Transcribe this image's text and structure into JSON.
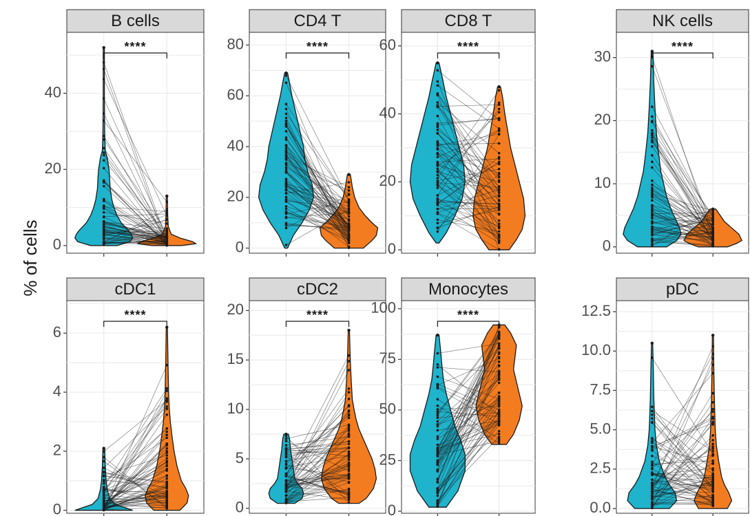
{
  "figure": {
    "ylabel": "% of cells"
  },
  "colors": {
    "group1": "#1fb3cc",
    "group2": "#f47c20",
    "pair_line": "#1a1a1a",
    "strip_bg": "#d9d9d9",
    "grid": "#ebebeb"
  },
  "chart_data": [
    {
      "type": "violin",
      "title": "B cells",
      "significance": "****",
      "ylim": [
        -2,
        56
      ],
      "ticks": [
        0,
        20,
        40
      ],
      "tick_labels": [
        "0",
        "20",
        "40"
      ],
      "groups": [
        {
          "max": 52,
          "shape": [
            [
              0,
              0.45
            ],
            [
              1,
              0.9
            ],
            [
              2,
              1.0
            ],
            [
              3,
              0.95
            ],
            [
              4,
              0.85
            ],
            [
              6,
              0.6
            ],
            [
              8,
              0.45
            ],
            [
              10,
              0.35
            ],
            [
              12,
              0.28
            ],
            [
              15,
              0.22
            ],
            [
              18,
              0.2
            ],
            [
              20,
              0.18
            ],
            [
              23,
              0.12
            ],
            [
              25,
              0.05
            ],
            [
              30,
              0.03
            ],
            [
              40,
              0.02
            ],
            [
              52,
              0.02
            ]
          ]
        },
        {
          "max": 13,
          "shape": [
            [
              0,
              0.5
            ],
            [
              0.5,
              1.0
            ],
            [
              1,
              0.9
            ],
            [
              2,
              0.45
            ],
            [
              3,
              0.15
            ],
            [
              5,
              0.05
            ],
            [
              8,
              0.03
            ],
            [
              13,
              0.02
            ]
          ]
        }
      ]
    },
    {
      "type": "violin",
      "title": "CD4 T",
      "significance": "****",
      "ylim": [
        -2,
        85
      ],
      "ticks": [
        0,
        20,
        40,
        60,
        80
      ],
      "tick_labels": [
        "0",
        "20",
        "40",
        "60",
        "80"
      ],
      "groups": [
        {
          "max": 69,
          "shape": [
            [
              0,
              0.05
            ],
            [
              5,
              0.25
            ],
            [
              10,
              0.55
            ],
            [
              15,
              0.8
            ],
            [
              20,
              0.95
            ],
            [
              25,
              0.9
            ],
            [
              30,
              0.75
            ],
            [
              35,
              0.65
            ],
            [
              40,
              0.6
            ],
            [
              45,
              0.5
            ],
            [
              50,
              0.4
            ],
            [
              55,
              0.3
            ],
            [
              60,
              0.2
            ],
            [
              65,
              0.12
            ],
            [
              69,
              0.05
            ]
          ]
        },
        {
          "max": 29,
          "shape": [
            [
              0,
              0.5
            ],
            [
              3,
              0.8
            ],
            [
              5,
              0.95
            ],
            [
              8,
              1.0
            ],
            [
              10,
              0.8
            ],
            [
              13,
              0.55
            ],
            [
              16,
              0.35
            ],
            [
              20,
              0.2
            ],
            [
              24,
              0.12
            ],
            [
              27,
              0.08
            ],
            [
              29,
              0.05
            ]
          ]
        }
      ]
    },
    {
      "type": "violin",
      "title": "CD8 T",
      "significance": "****",
      "ylim": [
        -1,
        64
      ],
      "ticks": [
        0,
        20,
        40,
        60
      ],
      "tick_labels": [
        "0",
        "20",
        "40",
        "60"
      ],
      "groups": [
        {
          "max": 55,
          "shape": [
            [
              2,
              0.05
            ],
            [
              5,
              0.3
            ],
            [
              10,
              0.6
            ],
            [
              15,
              0.85
            ],
            [
              20,
              0.95
            ],
            [
              25,
              0.9
            ],
            [
              30,
              0.75
            ],
            [
              35,
              0.6
            ],
            [
              40,
              0.45
            ],
            [
              45,
              0.3
            ],
            [
              50,
              0.18
            ],
            [
              55,
              0.05
            ]
          ]
        },
        {
          "max": 48,
          "shape": [
            [
              0,
              0.35
            ],
            [
              3,
              0.6
            ],
            [
              6,
              0.8
            ],
            [
              10,
              0.9
            ],
            [
              15,
              0.85
            ],
            [
              20,
              0.7
            ],
            [
              25,
              0.55
            ],
            [
              30,
              0.4
            ],
            [
              35,
              0.3
            ],
            [
              40,
              0.2
            ],
            [
              45,
              0.12
            ],
            [
              48,
              0.05
            ]
          ]
        }
      ]
    },
    {
      "type": "violin",
      "title": "NK cells",
      "significance": "****",
      "ylim": [
        -1,
        34
      ],
      "ticks": [
        0,
        10,
        20,
        30
      ],
      "tick_labels": [
        "0",
        "10",
        "20",
        "30"
      ],
      "groups": [
        {
          "max": 31,
          "shape": [
            [
              0,
              0.5
            ],
            [
              1,
              0.85
            ],
            [
              2,
              1.0
            ],
            [
              3,
              0.95
            ],
            [
              4,
              0.85
            ],
            [
              6,
              0.65
            ],
            [
              8,
              0.5
            ],
            [
              10,
              0.4
            ],
            [
              12,
              0.3
            ],
            [
              15,
              0.22
            ],
            [
              18,
              0.15
            ],
            [
              22,
              0.1
            ],
            [
              26,
              0.06
            ],
            [
              31,
              0.03
            ]
          ]
        },
        {
          "max": 6,
          "shape": [
            [
              0,
              0.5
            ],
            [
              0.5,
              0.8
            ],
            [
              1,
              1.0
            ],
            [
              2,
              0.9
            ],
            [
              3,
              0.65
            ],
            [
              4,
              0.4
            ],
            [
              5,
              0.25
            ],
            [
              6,
              0.1
            ]
          ]
        }
      ]
    },
    {
      "type": "violin",
      "title": "cDC1",
      "significance": "****",
      "ylim": [
        -0.1,
        7.1
      ],
      "ticks": [
        0,
        2,
        4,
        6
      ],
      "tick_labels": [
        "0",
        "2",
        "4",
        "6"
      ],
      "groups": [
        {
          "max": 2.1,
          "shape": [
            [
              0,
              1.0
            ],
            [
              0.1,
              0.7
            ],
            [
              0.2,
              0.4
            ],
            [
              0.4,
              0.2
            ],
            [
              0.7,
              0.12
            ],
            [
              1.0,
              0.08
            ],
            [
              1.5,
              0.05
            ],
            [
              2.1,
              0.03
            ]
          ]
        },
        {
          "max": 6.2,
          "shape": [
            [
              0,
              0.45
            ],
            [
              0.25,
              0.7
            ],
            [
              0.5,
              0.75
            ],
            [
              0.75,
              0.65
            ],
            [
              1.0,
              0.5
            ],
            [
              1.5,
              0.35
            ],
            [
              2.0,
              0.25
            ],
            [
              2.5,
              0.18
            ],
            [
              3.0,
              0.12
            ],
            [
              3.5,
              0.08
            ],
            [
              4.0,
              0.06
            ],
            [
              5.0,
              0.04
            ],
            [
              6.2,
              0.02
            ]
          ]
        }
      ]
    },
    {
      "type": "violin",
      "title": "cDC2",
      "significance": "****",
      "ylim": [
        -0.5,
        21
      ],
      "ticks": [
        0,
        5,
        10,
        15,
        20
      ],
      "tick_labels": [
        "0",
        "5",
        "10",
        "15",
        "20"
      ],
      "groups": [
        {
          "max": 7.5,
          "shape": [
            [
              0.5,
              0.3
            ],
            [
              1,
              0.55
            ],
            [
              1.5,
              0.6
            ],
            [
              2,
              0.55
            ],
            [
              2.5,
              0.4
            ],
            [
              3,
              0.3
            ],
            [
              4,
              0.25
            ],
            [
              5,
              0.2
            ],
            [
              6,
              0.15
            ],
            [
              7,
              0.12
            ],
            [
              7.5,
              0.08
            ]
          ]
        },
        {
          "max": 18,
          "shape": [
            [
              0.5,
              0.35
            ],
            [
              1,
              0.6
            ],
            [
              2,
              0.85
            ],
            [
              3,
              0.95
            ],
            [
              4,
              0.9
            ],
            [
              5,
              0.8
            ],
            [
              6,
              0.65
            ],
            [
              7,
              0.5
            ],
            [
              8,
              0.35
            ],
            [
              9,
              0.25
            ],
            [
              10,
              0.18
            ],
            [
              11,
              0.12
            ],
            [
              13,
              0.08
            ],
            [
              15,
              0.05
            ],
            [
              18,
              0.02
            ]
          ]
        }
      ]
    },
    {
      "type": "violin",
      "title": "Monocytes",
      "significance": "****",
      "ylim": [
        -1,
        104
      ],
      "ticks": [
        0,
        25,
        50,
        75,
        100
      ],
      "tick_labels": [
        "0",
        "25",
        "50",
        "75",
        "100"
      ],
      "groups": [
        {
          "max": 87,
          "shape": [
            [
              2,
              0.3
            ],
            [
              10,
              0.7
            ],
            [
              20,
              0.95
            ],
            [
              28,
              0.95
            ],
            [
              35,
              0.8
            ],
            [
              42,
              0.6
            ],
            [
              50,
              0.45
            ],
            [
              58,
              0.3
            ],
            [
              65,
              0.2
            ],
            [
              72,
              0.15
            ],
            [
              80,
              0.1
            ],
            [
              87,
              0.05
            ]
          ]
        },
        {
          "max": 92,
          "shape": [
            [
              33,
              0.25
            ],
            [
              38,
              0.5
            ],
            [
              45,
              0.7
            ],
            [
              52,
              0.8
            ],
            [
              58,
              0.7
            ],
            [
              64,
              0.6
            ],
            [
              70,
              0.5
            ],
            [
              76,
              0.55
            ],
            [
              82,
              0.6
            ],
            [
              88,
              0.4
            ],
            [
              92,
              0.2
            ]
          ]
        }
      ]
    },
    {
      "type": "violin",
      "title": "pDC",
      "significance": "",
      "ylim": [
        -0.3,
        13.2
      ],
      "ticks": [
        0,
        2.5,
        5,
        7.5,
        10,
        12.5
      ],
      "tick_labels": [
        "0.0",
        "2.5",
        "5.0",
        "7.5",
        "10.0",
        "12.5"
      ],
      "groups": [
        {
          "max": 10.5,
          "shape": [
            [
              0,
              0.6
            ],
            [
              0.5,
              0.85
            ],
            [
              1,
              0.8
            ],
            [
              1.5,
              0.6
            ],
            [
              2,
              0.45
            ],
            [
              2.5,
              0.35
            ],
            [
              3,
              0.25
            ],
            [
              4,
              0.15
            ],
            [
              5,
              0.1
            ],
            [
              7,
              0.06
            ],
            [
              9,
              0.04
            ],
            [
              10.5,
              0.02
            ]
          ]
        },
        {
          "max": 11,
          "shape": [
            [
              0,
              0.5
            ],
            [
              0.5,
              0.65
            ],
            [
              1,
              0.55
            ],
            [
              1.5,
              0.4
            ],
            [
              2,
              0.3
            ],
            [
              2.5,
              0.25
            ],
            [
              3,
              0.2
            ],
            [
              4,
              0.12
            ],
            [
              5,
              0.08
            ],
            [
              7,
              0.05
            ],
            [
              9,
              0.03
            ],
            [
              11,
              0.02
            ]
          ]
        }
      ]
    }
  ]
}
